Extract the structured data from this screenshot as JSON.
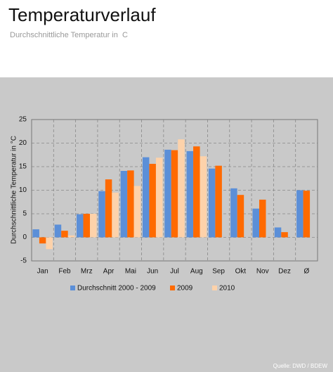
{
  "title": "Temperaturverlauf",
  "subtitle": "Durchschnittliche Temperatur in  C",
  "chart_data": {
    "type": "bar",
    "y_label": "Durchschnittliche Temperatur in °C",
    "source": "Quelle: DWD / BDEW",
    "categories": [
      "Jan",
      "Feb",
      "Mrz",
      "Apr",
      "Mai",
      "Jun",
      "Jul",
      "Aug",
      "Sep",
      "Okt",
      "Nov",
      "Dez",
      "Ø"
    ],
    "series": [
      {
        "name": "Durchschnitt 2000 - 2009",
        "color": "#5b8fd8",
        "values": [
          1.7,
          2.7,
          4.9,
          9.8,
          14.1,
          17.0,
          18.6,
          18.3,
          14.6,
          10.4,
          6.1,
          2.1,
          10.0
        ]
      },
      {
        "name": "2009",
        "color": "#ff6a00",
        "values": [
          -1.3,
          1.4,
          5.0,
          12.3,
          14.2,
          15.6,
          18.5,
          19.3,
          15.2,
          9.0,
          8.0,
          1.1,
          9.9
        ]
      },
      {
        "name": "2010",
        "color": "#fdd2aa",
        "values": [
          -2.5,
          0.4,
          5.0,
          9.5,
          10.9,
          16.9,
          20.8,
          17.2,
          null,
          null,
          null,
          null,
          null
        ]
      }
    ],
    "ylim": [
      -5,
      25
    ],
    "yticks": [
      -5,
      0,
      5,
      10,
      15,
      20,
      25
    ],
    "grid": true
  }
}
